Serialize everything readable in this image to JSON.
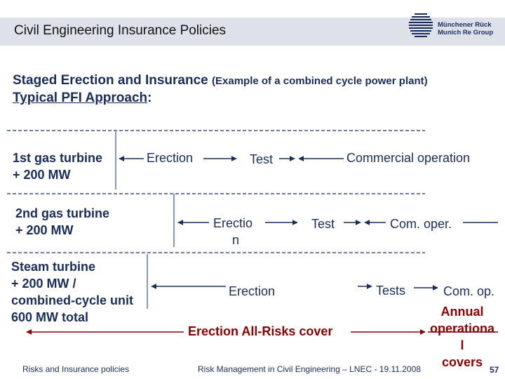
{
  "header": {
    "title": "Civil Engineering Insurance Policies",
    "logo_line1": "Münchener Rück",
    "logo_line2": "Munich Re Group"
  },
  "heading": {
    "line1_main": "Staged Erection and Insurance",
    "line1_note": "(Example of a combined cycle power plant)",
    "line2_underlined": "Typical  PFI  Approach",
    "line2_suffix": ":"
  },
  "rows": [
    {
      "label_lines": [
        "1st gas turbine",
        "+ 200 MW"
      ],
      "phases": [
        "Erection",
        "Test",
        "Commercial operation"
      ]
    },
    {
      "label_lines": [
        "2nd gas turbine",
        "+ 200 MW"
      ],
      "phases": [
        "Erectio",
        "n",
        "Test",
        "Com. oper."
      ]
    },
    {
      "label_lines": [
        "Steam turbine",
        "+ 200 MW /",
        "combined-cycle unit",
        "600 MW total"
      ],
      "phases": [
        "Erection",
        "Tests",
        "Com. op."
      ]
    }
  ],
  "covers": {
    "erection_all_risks": "Erection All-Risks cover",
    "annual_lines": [
      "Annual",
      "operationa",
      "l",
      "covers"
    ]
  },
  "footer": {
    "left": "Risks and Insurance policies",
    "center": "Risk Management in Civil Engineering  –  LNEC - 19.11.2008",
    "page": "57"
  },
  "colors": {
    "text": "#1a2d5a",
    "covers": "#8b0000",
    "header_band": "#dfe1ea"
  }
}
